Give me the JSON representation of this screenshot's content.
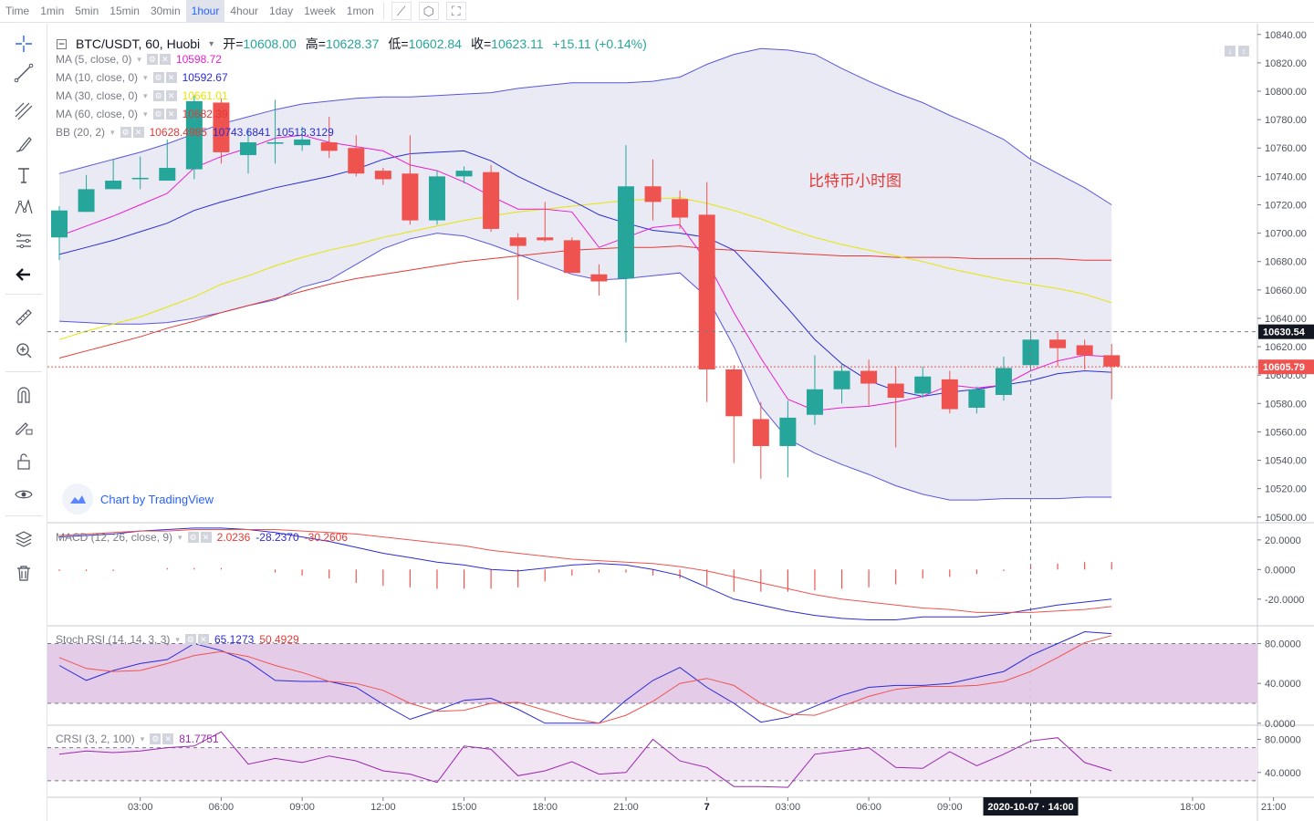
{
  "toolbar": {
    "timeframes": [
      "Time",
      "1min",
      "5min",
      "15min",
      "30min",
      "1hour",
      "4hour",
      "1day",
      "1week",
      "1mon"
    ],
    "active": "1hour",
    "icons": [
      "line-chart-icon",
      "indicators-icon",
      "fullscreen-icon"
    ]
  },
  "sidebar": {
    "tools": [
      "crosshair-icon",
      "trend-line-icon",
      "fib-icon",
      "brush-icon",
      "text-icon",
      "pattern-icon",
      "prediction-icon",
      "back-arrow-icon",
      "ruler-icon",
      "zoom-in-icon",
      "magnet-icon",
      "lock-draw-icon",
      "lock-icon",
      "eye-icon",
      "layers-icon",
      "trash-icon"
    ]
  },
  "header": {
    "symbol": "BTC/USDT, 60, Huobi",
    "open_label": "开=",
    "open": "10608.00",
    "high_label": "高=",
    "high": "10628.37",
    "low_label": "低=",
    "low": "10602.84",
    "close_label": "收=",
    "close": "10623.11",
    "change": "+15.11 (+0.14%)"
  },
  "legends": {
    "ma5": {
      "name": "MA (5, close, 0)",
      "value": "10598.72",
      "color": "#e91ed0"
    },
    "ma10": {
      "name": "MA (10, close, 0)",
      "value": "10592.67",
      "color": "#2b2bd6"
    },
    "ma30": {
      "name": "MA (30, close, 0)",
      "value": "10661.01",
      "color": "#e5e500"
    },
    "ma60": {
      "name": "MA (60, close, 0)",
      "value": "10682.39",
      "color": "#e53935"
    },
    "bb": {
      "name": "BB (20, 2)",
      "values": [
        "10628.4985",
        "10743.6841",
        "10513.3129"
      ],
      "colors": [
        "#e53935",
        "#2b2bd6",
        "#2b2bd6"
      ]
    },
    "macd": {
      "name": "MACD (12, 26, close, 9)",
      "values": [
        "2.0236",
        "-28.2370",
        "-30.2606"
      ],
      "colors": [
        "#e53935",
        "#2b2bd6",
        "#e53935"
      ]
    },
    "stoch": {
      "name": "Stoch RSI (14, 14, 3, 3)",
      "values": [
        "65.1273",
        "50.4929"
      ],
      "colors": [
        "#2b2bd6",
        "#e53935"
      ]
    },
    "crsi": {
      "name": "CRSI (3, 2, 100)",
      "values": [
        "81.7751"
      ],
      "colors": [
        "#9c27b0"
      ]
    }
  },
  "watermark": "Chart by TradingView",
  "annotation": "比特币小时图",
  "price_labels": {
    "upper": "10630.54",
    "current": "10605.79"
  },
  "crosshair_time": "2020-10-07 · 14:00",
  "colors": {
    "up": "#26a69a",
    "down": "#ef5350",
    "band_fill": "#e8e8f4",
    "band_line": "#5757e0"
  },
  "chart_data": {
    "type": "candlestick",
    "x_labels": [
      "03:00",
      "06:00",
      "09:00",
      "12:00",
      "15:00",
      "18:00",
      "21:00",
      "7",
      "03:00",
      "06:00",
      "09:00",
      "12:00",
      "18:00",
      "21:00"
    ],
    "y_ticks": [
      10500,
      10520,
      10540,
      10560,
      10580,
      10600,
      10620,
      10640,
      10660,
      10680,
      10700,
      10720,
      10740,
      10760,
      10780,
      10800,
      10820,
      10840
    ],
    "ylim": [
      10496,
      10845
    ],
    "candles": [
      {
        "o": 10697,
        "h": 10719,
        "l": 10681,
        "c": 10716
      },
      {
        "o": 10715,
        "h": 10741,
        "l": 10715,
        "c": 10731
      },
      {
        "o": 10731,
        "h": 10752,
        "l": 10733,
        "c": 10737
      },
      {
        "o": 10738,
        "h": 10754,
        "l": 10731,
        "c": 10739
      },
      {
        "o": 10737,
        "h": 10766,
        "l": 10737,
        "c": 10746
      },
      {
        "o": 10745,
        "h": 10797,
        "l": 10738,
        "c": 10793
      },
      {
        "o": 10792,
        "h": 10795,
        "l": 10749,
        "c": 10757
      },
      {
        "o": 10755,
        "h": 10774,
        "l": 10742,
        "c": 10764
      },
      {
        "o": 10763,
        "h": 10794,
        "l": 10749,
        "c": 10764
      },
      {
        "o": 10762,
        "h": 10775,
        "l": 10758,
        "c": 10766
      },
      {
        "o": 10764,
        "h": 10782,
        "l": 10753,
        "c": 10758
      },
      {
        "o": 10760,
        "h": 10769,
        "l": 10740,
        "c": 10742
      },
      {
        "o": 10744,
        "h": 10746,
        "l": 10734,
        "c": 10738
      },
      {
        "o": 10742,
        "h": 10769,
        "l": 10706,
        "c": 10709
      },
      {
        "o": 10709,
        "h": 10744,
        "l": 10706,
        "c": 10740
      },
      {
        "o": 10740,
        "h": 10747,
        "l": 10735,
        "c": 10744
      },
      {
        "o": 10743,
        "h": 10748,
        "l": 10701,
        "c": 10703
      },
      {
        "o": 10697,
        "h": 10700,
        "l": 10653,
        "c": 10691
      },
      {
        "o": 10697,
        "h": 10722,
        "l": 10694,
        "c": 10695
      },
      {
        "o": 10695,
        "h": 10697,
        "l": 10674,
        "c": 10672
      },
      {
        "o": 10671,
        "h": 10678,
        "l": 10656,
        "c": 10666
      },
      {
        "o": 10668,
        "h": 10762,
        "l": 10623,
        "c": 10733
      },
      {
        "o": 10733,
        "h": 10752,
        "l": 10709,
        "c": 10722
      },
      {
        "o": 10724,
        "h": 10730,
        "l": 10703,
        "c": 10711
      },
      {
        "o": 10713,
        "h": 10736,
        "l": 10581,
        "c": 10604
      },
      {
        "o": 10604,
        "h": 10607,
        "l": 10538,
        "c": 10571
      },
      {
        "o": 10569,
        "h": 10581,
        "l": 10527,
        "c": 10550
      },
      {
        "o": 10550,
        "h": 10582,
        "l": 10528,
        "c": 10570
      },
      {
        "o": 10572,
        "h": 10614,
        "l": 10565,
        "c": 10590
      },
      {
        "o": 10590,
        "h": 10608,
        "l": 10580,
        "c": 10603
      },
      {
        "o": 10603,
        "h": 10611,
        "l": 10578,
        "c": 10594
      },
      {
        "o": 10594,
        "h": 10606,
        "l": 10549,
        "c": 10584
      },
      {
        "o": 10587,
        "h": 10606,
        "l": 10584,
        "c": 10599
      },
      {
        "o": 10597,
        "h": 10603,
        "l": 10573,
        "c": 10576
      },
      {
        "o": 10577,
        "h": 10592,
        "l": 10573,
        "c": 10590
      },
      {
        "o": 10586,
        "h": 10613,
        "l": 10582,
        "c": 10605
      },
      {
        "o": 10607,
        "h": 10629,
        "l": 10603,
        "c": 10625
      },
      {
        "o": 10625,
        "h": 10630,
        "l": 10606,
        "c": 10619
      },
      {
        "o": 10621,
        "h": 10625,
        "l": 10604,
        "c": 10614
      },
      {
        "o": 10614,
        "h": 10622,
        "l": 10583,
        "c": 10606
      }
    ],
    "ma5": [
      10698,
      10705,
      10712,
      10720,
      10728,
      10746,
      10754,
      10760,
      10767,
      10769,
      10764,
      10761,
      10758,
      10748,
      10744,
      10736,
      10726,
      10717,
      10717,
      10715,
      10690,
      10697,
      10704,
      10706,
      10680,
      10644,
      10612,
      10583,
      10575,
      10577,
      10578,
      10581,
      10585,
      10593,
      10591,
      10593,
      10603,
      10610,
      10614,
      10613
    ],
    "ma10": [
      10685,
      10690,
      10695,
      10701,
      10707,
      10716,
      10722,
      10727,
      10732,
      10736,
      10740,
      10745,
      10752,
      10756,
      10757,
      10758,
      10751,
      10740,
      10731,
      10723,
      10713,
      10707,
      10702,
      10700,
      10697,
      10688,
      10668,
      10647,
      10625,
      10608,
      10596,
      10589,
      10585,
      10588,
      10590,
      10593,
      10596,
      10601,
      10603,
      10602
    ],
    "ma30": [
      10625,
      10631,
      10636,
      10641,
      10648,
      10655,
      10664,
      10670,
      10677,
      10683,
      10688,
      10692,
      10697,
      10701,
      10705,
      10709,
      10712,
      10715,
      10717,
      10719,
      10721,
      10723,
      10724,
      10725,
      10721,
      10716,
      10710,
      10703,
      10697,
      10692,
      10688,
      10684,
      10680,
      10675,
      10671,
      10667,
      10664,
      10661,
      10657,
      10651
    ],
    "ma60": [
      10612,
      10617,
      10622,
      10627,
      10633,
      10638,
      10644,
      10649,
      10654,
      10659,
      10664,
      10668,
      10671,
      10674,
      10677,
      10680,
      10682,
      10684,
      10686,
      10688,
      10689,
      10690,
      10690,
      10691,
      10689,
      10688,
      10687,
      10686,
      10685,
      10684,
      10684,
      10683,
      10683,
      10683,
      10682,
      10682,
      10682,
      10682,
      10681,
      10681
    ],
    "bb_upper": [
      10742,
      10747,
      10752,
      10757,
      10763,
      10770,
      10777,
      10782,
      10787,
      10791,
      10793,
      10795,
      10796,
      10796,
      10797,
      10798,
      10799,
      10802,
      10804,
      10806,
      10806,
      10806,
      10807,
      10810,
      10819,
      10826,
      10830,
      10829,
      10826,
      10816,
      10807,
      10799,
      10792,
      10783,
      10775,
      10766,
      10752,
      10742,
      10732,
      10720
    ],
    "bb_lower": [
      10638,
      10637,
      10636,
      10636,
      10637,
      10640,
      10644,
      10649,
      10653,
      10662,
      10667,
      10678,
      10689,
      10696,
      10700,
      10698,
      10692,
      10685,
      10678,
      10671,
      10667,
      10668,
      10670,
      10672,
      10655,
      10620,
      10578,
      10555,
      10545,
      10537,
      10530,
      10522,
      10516,
      10512,
      10512,
      10513,
      10513,
      10513,
      10514,
      10514
    ],
    "macd_ticks": [
      20,
      0,
      -20
    ],
    "macd_ylim": [
      -38,
      31
    ],
    "macd_line": [
      22,
      23,
      24,
      26,
      27,
      28,
      28,
      27,
      25,
      22,
      19,
      15,
      11,
      8,
      5,
      3,
      0,
      -1,
      1,
      3,
      4,
      3,
      0,
      -4,
      -12,
      -20,
      -24,
      -28,
      -31,
      -33,
      -34,
      -34,
      -32,
      -32,
      -32,
      -30,
      -27,
      -24,
      -22,
      -20
    ],
    "signal_line": [
      23,
      24,
      25,
      26,
      26,
      27,
      27,
      27,
      27,
      26,
      25,
      24,
      22,
      20,
      18,
      16,
      13,
      11,
      9,
      7,
      6,
      5,
      4,
      2,
      -1,
      -5,
      -9,
      -13,
      -17,
      -20,
      -22,
      -24,
      -26,
      -27,
      -29,
      -29,
      -29,
      -28,
      -27,
      -25
    ],
    "stoch_ticks": [
      80,
      40,
      0
    ],
    "stoch_ylim": [
      -2,
      97
    ],
    "stoch_k": [
      58,
      43,
      53,
      60,
      64,
      80,
      73,
      62,
      43,
      42,
      42,
      36,
      19,
      4,
      13,
      23,
      25,
      14,
      0,
      0,
      0,
      23,
      43,
      56,
      36,
      20,
      1,
      6,
      17,
      28,
      36,
      38,
      38,
      40,
      46,
      52,
      68,
      80,
      92,
      90
    ],
    "stoch_d": [
      66,
      55,
      52,
      53,
      60,
      68,
      72,
      67,
      58,
      51,
      42,
      40,
      33,
      20,
      12,
      13,
      20,
      21,
      13,
      5,
      0,
      8,
      22,
      40,
      45,
      38,
      20,
      9,
      8,
      17,
      27,
      34,
      37,
      37,
      38,
      42,
      52,
      66,
      81,
      88
    ],
    "crsi_ticks": [
      80,
      40
    ],
    "crsi_ylim": [
      10,
      96
    ],
    "crsi": [
      62,
      66,
      64,
      66,
      70,
      72,
      89,
      50,
      57,
      52,
      60,
      54,
      42,
      38,
      28,
      72,
      68,
      36,
      42,
      53,
      38,
      40,
      80,
      54,
      46,
      23,
      23,
      22,
      62,
      66,
      70,
      46,
      45,
      65,
      48,
      62,
      78,
      82,
      52,
      42
    ]
  }
}
